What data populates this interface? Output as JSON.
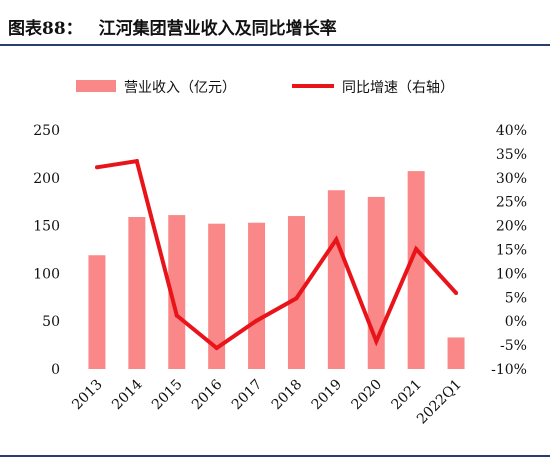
{
  "figure": {
    "label": "图表88：",
    "title": "江河集团营业收入及同比增长率"
  },
  "colors": {
    "bar": "#fb8888",
    "line": "#e8141a",
    "rule": "#2b3d6e",
    "text": "#111111"
  },
  "chart_data": {
    "type": "bar",
    "title": "江河集团营业收入及同比增长率",
    "categories": [
      "2013",
      "2014",
      "2015",
      "2016",
      "2017",
      "2018",
      "2019",
      "2020",
      "2021",
      "2022Q1"
    ],
    "series": [
      {
        "name": "营业收入（亿元）",
        "type": "bar",
        "axis": "left",
        "values": [
          119,
          159,
          161,
          152,
          153,
          160,
          187,
          180,
          207,
          33
        ]
      },
      {
        "name": "同比增速（右轴）",
        "type": "line",
        "axis": "right",
        "values": [
          32.2,
          33.5,
          1.2,
          -5.6,
          0.1,
          4.8,
          17.1,
          -4.2,
          15.1,
          5.9
        ]
      }
    ],
    "y_left": {
      "ylim": [
        0,
        250
      ],
      "ticks": [
        "0",
        "50",
        "100",
        "150",
        "200",
        "250"
      ]
    },
    "y_right": {
      "ylim": [
        -10,
        40
      ],
      "ticks": [
        "-10%",
        "-5%",
        "0%",
        "5%",
        "10%",
        "15%",
        "20%",
        "25%",
        "30%",
        "35%",
        "40%"
      ]
    },
    "legend_position": "top",
    "grid": false
  }
}
